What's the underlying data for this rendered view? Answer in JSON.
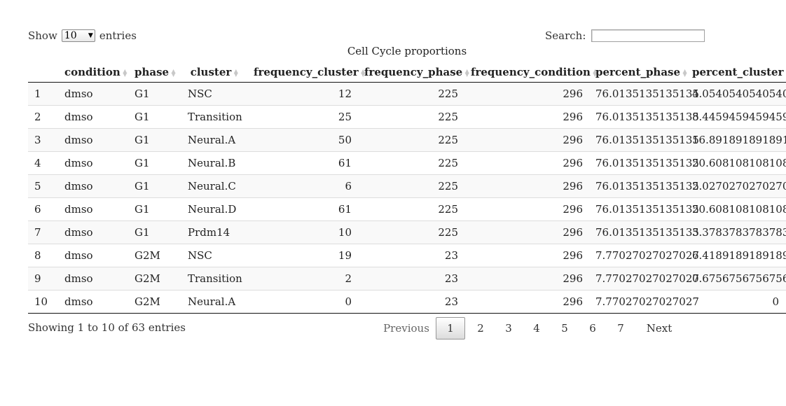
{
  "length_menu": {
    "prefix": "Show",
    "selected": "10",
    "suffix": "entries"
  },
  "search": {
    "label": "Search:",
    "value": ""
  },
  "caption": "Cell Cycle proportions",
  "columns": [
    {
      "label": "",
      "key": "idx"
    },
    {
      "label": "condition",
      "key": "condition"
    },
    {
      "label": "phase",
      "key": "phase"
    },
    {
      "label": "cluster",
      "key": "cluster"
    },
    {
      "label": "frequency_cluster",
      "key": "frequency_cluster"
    },
    {
      "label": "frequency_phase",
      "key": "frequency_phase"
    },
    {
      "label": "frequency_condition",
      "key": "frequency_condition"
    },
    {
      "label": "percent_phase",
      "key": "percent_phase"
    },
    {
      "label": "percent_cluster",
      "key": "percent_cluster"
    }
  ],
  "rows": [
    [
      "1",
      "dmso",
      "G1",
      "NSC",
      "12",
      "225",
      "296",
      "76.0135135135135",
      "4.05405405405405"
    ],
    [
      "2",
      "dmso",
      "G1",
      "Transition",
      "25",
      "225",
      "296",
      "76.0135135135135",
      "8.44594594594595"
    ],
    [
      "3",
      "dmso",
      "G1",
      "Neural.A",
      "50",
      "225",
      "296",
      "76.0135135135135",
      "16.8918918918919"
    ],
    [
      "4",
      "dmso",
      "G1",
      "Neural.B",
      "61",
      "225",
      "296",
      "76.0135135135135",
      "20.6081081081081"
    ],
    [
      "5",
      "dmso",
      "G1",
      "Neural.C",
      "6",
      "225",
      "296",
      "76.0135135135135",
      "2.02702702702703"
    ],
    [
      "6",
      "dmso",
      "G1",
      "Neural.D",
      "61",
      "225",
      "296",
      "76.0135135135135",
      "20.6081081081081"
    ],
    [
      "7",
      "dmso",
      "G1",
      "Prdm14",
      "10",
      "225",
      "296",
      "76.0135135135135",
      "3.37837837837838"
    ],
    [
      "8",
      "dmso",
      "G2M",
      "NSC",
      "19",
      "23",
      "296",
      "7.77027027027027",
      "6.41891891891892"
    ],
    [
      "9",
      "dmso",
      "G2M",
      "Transition",
      "2",
      "23",
      "296",
      "7.77027027027027",
      "0.675675675675676"
    ],
    [
      "10",
      "dmso",
      "G2M",
      "Neural.A",
      "0",
      "23",
      "296",
      "7.77027027027027",
      "0"
    ]
  ],
  "info": "Showing 1 to 10 of 63 entries",
  "pagination": {
    "previous": "Previous",
    "pages": [
      "1",
      "2",
      "3",
      "4",
      "5",
      "6",
      "7"
    ],
    "current": "1",
    "next": "Next"
  }
}
